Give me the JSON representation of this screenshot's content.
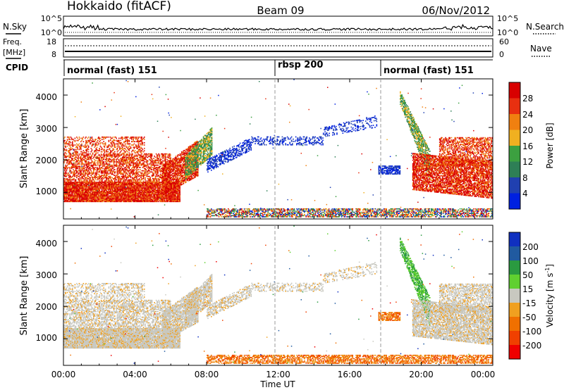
{
  "header": {
    "station": "Hokkaido (fitACF)",
    "beam": "Beam 09",
    "date": "06/Nov/2012"
  },
  "noise_panel": {
    "left_label": "N.Sky",
    "left_ticks": [
      "10^5",
      "10^0"
    ],
    "right_ticks": [
      "10^5",
      "10^0"
    ],
    "right_label": "N.Search"
  },
  "freq_panel": {
    "left_label_1": "Freq.",
    "left_label_2": "[MHz]",
    "left_ticks": [
      "18",
      "8"
    ],
    "right_ticks": [
      "60",
      "0"
    ],
    "right_label": "Nave"
  },
  "cpid_panel": {
    "label": "CPID",
    "modes": [
      {
        "name": "normal (fast) 151",
        "start_hour": 0
      },
      {
        "name": "rbsp 200",
        "start_hour": 12
      },
      {
        "name": "normal (fast) 151",
        "start_hour": 18
      }
    ]
  },
  "x_axis": {
    "label": "Time UT",
    "ticks": [
      "00:00",
      "04:00",
      "08:00",
      "12:00",
      "16:00",
      "20:00",
      "00:00"
    ]
  },
  "y_axis": {
    "label": "Slant Range [km]",
    "ticks": [
      "1000",
      "2000",
      "3000",
      "4000"
    ]
  },
  "colors": {
    "power": [
      "#0020e0",
      "#2040b0",
      "#2e7f56",
      "#3ca040",
      "#f0b020",
      "#f08010",
      "#e83010",
      "#d80000"
    ],
    "velocity": [
      "#ef0000",
      "#f04000",
      "#f07000",
      "#f0a020",
      "#c8c8c0",
      "#60d030",
      "#2a9a40",
      "#205aa0",
      "#1030c0"
    ]
  },
  "power_scale": {
    "label": "Power [dB]",
    "ticks": [
      "4",
      "8",
      "12",
      "16",
      "20",
      "24",
      "28"
    ]
  },
  "velocity_scale": {
    "label_main": "Velocity [m s",
    "label_sup": "-1",
    "label_end": "]",
    "ticks": [
      "200",
      "100",
      "50",
      "15",
      "-15",
      "-50",
      "-100",
      "-200"
    ]
  },
  "chart_data": {
    "type": "heatmap",
    "title": "Hokkaido (fitACF) Beam 09 06/Nov/2012",
    "xlabel": "Time UT",
    "ylabel": "Slant Range [km]",
    "xlim": [
      0,
      24
    ],
    "ylim": [
      180,
      4500
    ],
    "power_colorbar": {
      "label": "Power [dB]",
      "range": [
        0,
        32
      ]
    },
    "velocity_colorbar": {
      "label": "Velocity [m s-1]",
      "range": [
        -250,
        250
      ]
    },
    "mode_boundaries_hours": [
      12,
      18
    ]
  }
}
